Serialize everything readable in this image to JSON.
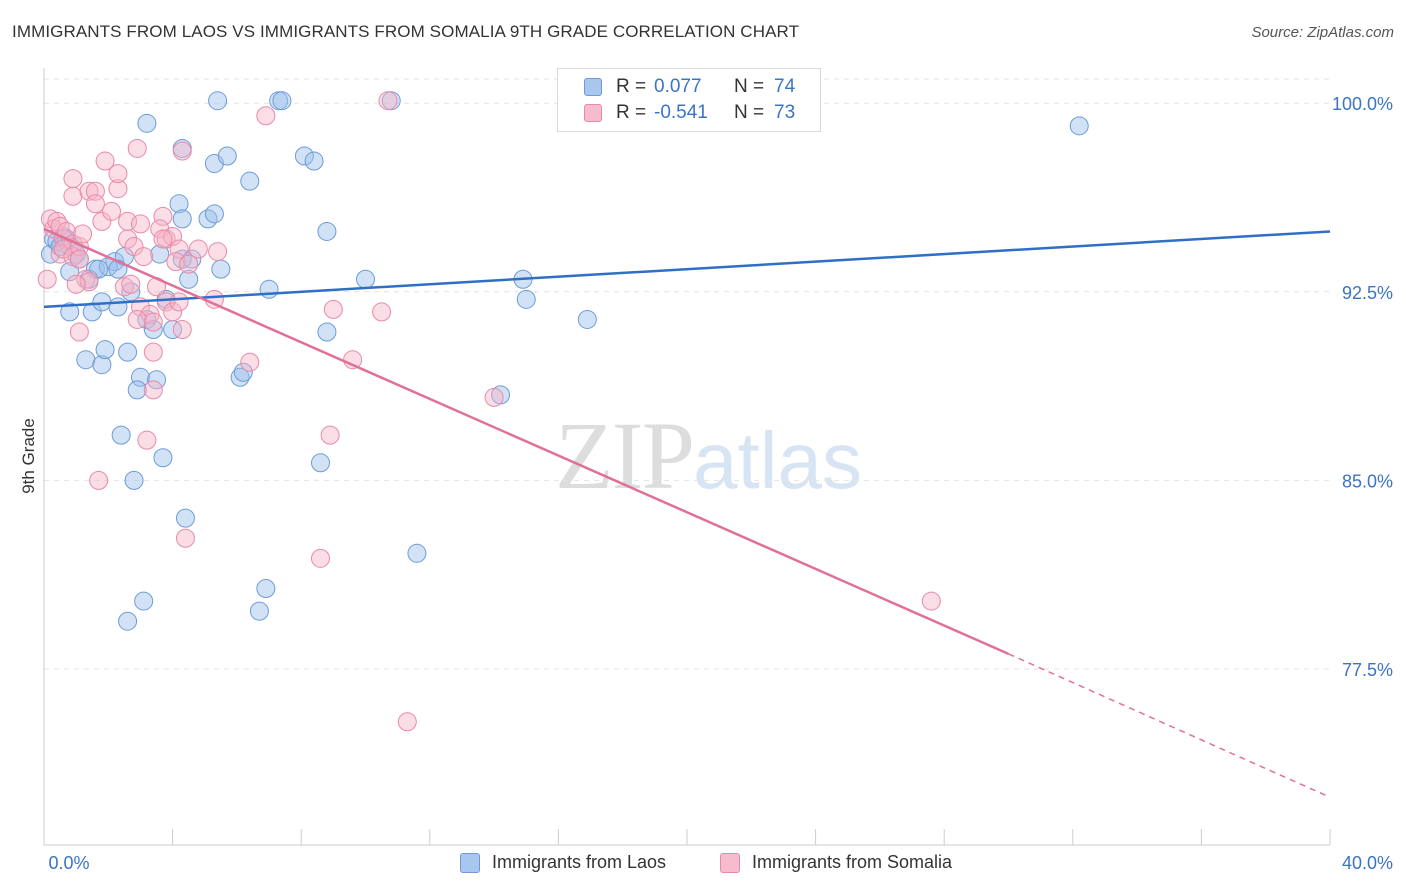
{
  "title": "IMMIGRANTS FROM LAOS VS IMMIGRANTS FROM SOMALIA 9TH GRADE CORRELATION CHART",
  "source": "Source: ZipAtlas.com",
  "watermark": {
    "zip": "ZIP",
    "atlas": "atlas"
  },
  "legend": {
    "r_label": "R =",
    "n_label": "N =",
    "rows": [
      {
        "r": "0.077",
        "n": "74",
        "color": "#a9c7ee",
        "border": "#6e9bd6"
      },
      {
        "r": "-0.541",
        "n": "73",
        "color": "#f6bccd",
        "border": "#e88aa8"
      }
    ]
  },
  "bottom_legend": [
    "Immigrants from Laos",
    "Immigrants from Somalia"
  ],
  "colors": {
    "laos_fill": "rgba(155,190,235,0.45)",
    "laos_stroke": "#6e9bd6",
    "laos_line": "#2f6fc6",
    "somalia_fill": "rgba(246,180,200,0.45)",
    "somalia_stroke": "#e88aa8",
    "somalia_line": "#e0709a",
    "axis_text": "#3a74c4",
    "grid": "#e3e3e3"
  },
  "chart_data": {
    "type": "scatter",
    "title": "IMMIGRANTS FROM LAOS VS IMMIGRANTS FROM SOMALIA 9TH GRADE CORRELATION CHART",
    "xlabel": "",
    "ylabel": "9th Grade",
    "xlim": [
      0,
      40
    ],
    "ylim": [
      70.5,
      101.4
    ],
    "x_tick_labels": [
      "0.0%",
      "40.0%"
    ],
    "y_ticks": [
      77.5,
      85.0,
      92.5,
      100.0
    ],
    "y_tick_labels": [
      "77.5%",
      "85.0%",
      "92.5%",
      "100.0%"
    ],
    "grid": true,
    "series": [
      {
        "name": "Immigrants from Laos",
        "r": 0.077,
        "n": 74,
        "trend": {
          "x0": 0,
          "y0": 91.9,
          "x1": 40,
          "y1": 94.9
        },
        "points": [
          [
            0.2,
            94.0
          ],
          [
            0.3,
            94.6
          ],
          [
            0.4,
            94.5
          ],
          [
            0.5,
            94.3
          ],
          [
            0.6,
            94.7
          ],
          [
            0.7,
            94.6
          ],
          [
            0.8,
            94.3
          ],
          [
            1.0,
            94.0
          ],
          [
            0.8,
            93.3
          ],
          [
            1.1,
            93.8
          ],
          [
            1.6,
            93.4
          ],
          [
            2.2,
            93.7
          ],
          [
            2.5,
            93.9
          ],
          [
            2.0,
            93.5
          ],
          [
            2.3,
            93.4
          ],
          [
            1.4,
            93.0
          ],
          [
            1.7,
            93.4
          ],
          [
            0.8,
            91.7
          ],
          [
            1.5,
            91.7
          ],
          [
            1.8,
            92.1
          ],
          [
            2.7,
            92.5
          ],
          [
            2.3,
            91.9
          ],
          [
            3.2,
            91.4
          ],
          [
            3.4,
            91.0
          ],
          [
            1.3,
            89.8
          ],
          [
            1.8,
            89.6
          ],
          [
            1.9,
            90.2
          ],
          [
            2.6,
            90.1
          ],
          [
            3.0,
            89.1
          ],
          [
            3.5,
            89.0
          ],
          [
            2.9,
            88.6
          ],
          [
            2.4,
            86.8
          ],
          [
            3.7,
            85.9
          ],
          [
            2.8,
            85.0
          ],
          [
            4.4,
            83.5
          ],
          [
            3.1,
            80.2
          ],
          [
            2.6,
            79.4
          ],
          [
            6.9,
            80.7
          ],
          [
            6.7,
            79.8
          ],
          [
            11.6,
            82.1
          ],
          [
            8.6,
            85.7
          ],
          [
            6.1,
            89.1
          ],
          [
            6.2,
            89.3
          ],
          [
            8.8,
            90.9
          ],
          [
            3.8,
            92.2
          ],
          [
            4.5,
            93.0
          ],
          [
            5.5,
            93.4
          ],
          [
            7.0,
            92.6
          ],
          [
            10.0,
            93.0
          ],
          [
            4.3,
            93.8
          ],
          [
            4.6,
            93.8
          ],
          [
            3.6,
            94.0
          ],
          [
            4.2,
            96.0
          ],
          [
            4.3,
            95.4
          ],
          [
            5.1,
            95.4
          ],
          [
            5.3,
            95.6
          ],
          [
            8.8,
            94.9
          ],
          [
            5.3,
            97.6
          ],
          [
            5.7,
            97.9
          ],
          [
            6.4,
            96.9
          ],
          [
            8.1,
            97.9
          ],
          [
            8.4,
            97.7
          ],
          [
            4.3,
            98.2
          ],
          [
            5.4,
            100.1
          ],
          [
            7.3,
            100.1
          ],
          [
            7.4,
            100.1
          ],
          [
            10.8,
            100.1
          ],
          [
            3.2,
            99.2
          ],
          [
            4.0,
            91.0
          ],
          [
            15.0,
            92.2
          ],
          [
            16.9,
            91.4
          ],
          [
            14.2,
            88.4
          ],
          [
            32.2,
            99.1
          ],
          [
            14.9,
            93.0
          ]
        ]
      },
      {
        "name": "Immigrants from Somalia",
        "r": -0.541,
        "n": 73,
        "trend": {
          "x0": 0,
          "y0": 95.0,
          "x1": 30.0,
          "y1": 78.1
        },
        "trend_extension": {
          "x0": 30.0,
          "y0": 78.1,
          "x1": 40,
          "y1": 72.4
        },
        "points": [
          [
            0.1,
            93.0
          ],
          [
            0.2,
            95.4
          ],
          [
            0.3,
            95.0
          ],
          [
            0.4,
            95.3
          ],
          [
            0.5,
            95.1
          ],
          [
            0.6,
            94.6
          ],
          [
            0.7,
            94.9
          ],
          [
            0.9,
            94.4
          ],
          [
            0.5,
            94.0
          ],
          [
            0.6,
            94.2
          ],
          [
            0.9,
            93.9
          ],
          [
            1.1,
            94.3
          ],
          [
            1.2,
            94.8
          ],
          [
            1.1,
            93.8
          ],
          [
            1.3,
            93.0
          ],
          [
            1.4,
            92.9
          ],
          [
            1.0,
            92.8
          ],
          [
            0.9,
            96.3
          ],
          [
            0.9,
            97.0
          ],
          [
            1.4,
            96.5
          ],
          [
            1.6,
            96.5
          ],
          [
            1.6,
            96.0
          ],
          [
            1.8,
            95.3
          ],
          [
            2.1,
            95.7
          ],
          [
            2.3,
            96.6
          ],
          [
            2.3,
            97.2
          ],
          [
            1.9,
            97.7
          ],
          [
            2.6,
            94.6
          ],
          [
            2.6,
            95.3
          ],
          [
            2.8,
            94.3
          ],
          [
            3.0,
            95.2
          ],
          [
            3.1,
            93.9
          ],
          [
            2.5,
            92.7
          ],
          [
            2.7,
            92.8
          ],
          [
            3.5,
            92.7
          ],
          [
            3.8,
            92.1
          ],
          [
            4.0,
            91.7
          ],
          [
            4.2,
            92.1
          ],
          [
            3.0,
            91.9
          ],
          [
            3.3,
            91.6
          ],
          [
            2.9,
            91.4
          ],
          [
            3.4,
            91.3
          ],
          [
            4.3,
            91.0
          ],
          [
            3.4,
            90.1
          ],
          [
            3.4,
            88.6
          ],
          [
            3.2,
            86.6
          ],
          [
            1.1,
            90.9
          ],
          [
            1.7,
            85.0
          ],
          [
            4.4,
            82.7
          ],
          [
            3.7,
            95.5
          ],
          [
            3.6,
            95.0
          ],
          [
            3.8,
            94.6
          ],
          [
            4.0,
            94.7
          ],
          [
            4.2,
            94.2
          ],
          [
            4.8,
            94.2
          ],
          [
            5.4,
            94.1
          ],
          [
            4.1,
            93.7
          ],
          [
            4.5,
            93.6
          ],
          [
            5.3,
            92.2
          ],
          [
            6.4,
            89.7
          ],
          [
            6.9,
            99.5
          ],
          [
            4.3,
            98.1
          ],
          [
            2.9,
            98.2
          ],
          [
            10.7,
            100.1
          ],
          [
            9.0,
            91.8
          ],
          [
            9.6,
            89.8
          ],
          [
            10.5,
            91.7
          ],
          [
            8.6,
            81.9
          ],
          [
            8.9,
            86.8
          ],
          [
            11.3,
            75.4
          ],
          [
            14.0,
            88.3
          ],
          [
            27.6,
            80.2
          ],
          [
            3.7,
            94.6
          ]
        ]
      }
    ]
  }
}
